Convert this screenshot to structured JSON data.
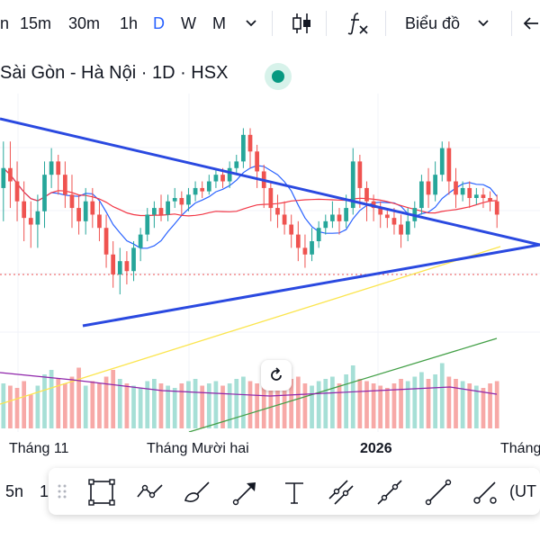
{
  "toolbar": {
    "intervals": [
      {
        "label": "n",
        "active": false
      },
      {
        "label": "15m",
        "active": false
      },
      {
        "label": "30m",
        "active": false
      },
      {
        "label": "1h",
        "active": false
      },
      {
        "label": "D",
        "active": true
      },
      {
        "label": "W",
        "active": false
      },
      {
        "label": "M",
        "active": false
      }
    ],
    "chart_menu_label": "Biểu đồ"
  },
  "symbol_title": "Sài Gòn - Hà Nội · 1D · HSX",
  "time_axis": {
    "labels": [
      "Tháng 11",
      "Tháng Mười hai",
      "2026",
      "Tháng"
    ]
  },
  "bottom_bar": {
    "left_labels": [
      "5n",
      "1"
    ],
    "right_label": "(UT"
  },
  "drawing_tools": [
    "rectangle-tool-icon",
    "path-tool-icon",
    "brush-tool-icon",
    "arrow-tool-icon",
    "text-tool-icon",
    "parallel-channel-icon",
    "ray-tool-icon",
    "trend-line-icon",
    "pencil-line-icon"
  ],
  "colors": {
    "up": "#26a69a",
    "down": "#ef5350",
    "trendline": "#2a49e0",
    "ma_fast": "#2962ff",
    "ma_slow": "#f23645",
    "ma_long": "#fbe54e",
    "vol_ma_green": "#43a047",
    "vol_ma_purple": "#8e24aa",
    "accent": "#2962ff"
  },
  "chart_data": {
    "type": "candlestick",
    "title": "Sài Gòn - Hà Nội · 1D · HSX",
    "x_labels": [
      "Tháng 11",
      "Tháng Mười hai",
      "2026",
      "Tháng"
    ],
    "candles": [
      [
        82,
        88,
        72,
        96,
        1
      ],
      [
        88,
        84,
        76,
        96,
        0
      ],
      [
        84,
        78,
        72,
        90,
        0
      ],
      [
        78,
        73,
        66,
        84,
        0
      ],
      [
        73,
        71,
        64,
        78,
        0
      ],
      [
        71,
        75,
        64,
        80,
        1
      ],
      [
        75,
        86,
        70,
        90,
        1
      ],
      [
        86,
        90,
        82,
        94,
        1
      ],
      [
        90,
        86,
        80,
        92,
        0
      ],
      [
        86,
        80,
        76,
        90,
        0
      ],
      [
        80,
        76,
        70,
        86,
        0
      ],
      [
        76,
        72,
        68,
        80,
        0
      ],
      [
        72,
        78,
        68,
        82,
        1
      ],
      [
        78,
        74,
        70,
        82,
        0
      ],
      [
        74,
        70,
        66,
        78,
        0
      ],
      [
        70,
        62,
        58,
        74,
        0
      ],
      [
        62,
        56,
        52,
        66,
        0
      ],
      [
        56,
        60,
        50,
        64,
        1
      ],
      [
        60,
        57,
        53,
        63,
        0
      ],
      [
        57,
        64,
        54,
        66,
        1
      ],
      [
        64,
        68,
        60,
        70,
        1
      ],
      [
        68,
        74,
        66,
        76,
        1
      ],
      [
        74,
        76,
        70,
        78,
        1
      ],
      [
        76,
        74,
        72,
        80,
        0
      ],
      [
        74,
        78,
        72,
        80,
        1
      ],
      [
        78,
        79,
        76,
        82,
        1
      ],
      [
        79,
        77,
        74,
        81,
        0
      ],
      [
        77,
        80,
        75,
        82,
        1
      ],
      [
        80,
        82,
        78,
        84,
        1
      ],
      [
        82,
        81,
        79,
        84,
        0
      ],
      [
        81,
        84,
        80,
        86,
        1
      ],
      [
        84,
        86,
        82,
        88,
        1
      ],
      [
        86,
        84,
        82,
        88,
        0
      ],
      [
        84,
        88,
        82,
        90,
        1
      ],
      [
        88,
        90,
        86,
        92,
        1
      ],
      [
        90,
        98,
        88,
        100,
        1
      ],
      [
        98,
        93,
        88,
        100,
        0
      ],
      [
        93,
        87,
        82,
        95,
        0
      ],
      [
        87,
        82,
        76,
        89,
        0
      ],
      [
        82,
        76,
        72,
        84,
        0
      ],
      [
        76,
        74,
        70,
        80,
        0
      ],
      [
        74,
        71,
        68,
        78,
        0
      ],
      [
        71,
        68,
        64,
        74,
        0
      ],
      [
        68,
        64,
        60,
        72,
        0
      ],
      [
        64,
        62,
        58,
        68,
        0
      ],
      [
        62,
        66,
        60,
        70,
        1
      ],
      [
        66,
        70,
        64,
        72,
        1
      ],
      [
        70,
        72,
        68,
        74,
        1
      ],
      [
        72,
        74,
        70,
        78,
        1
      ],
      [
        74,
        72,
        68,
        76,
        0
      ],
      [
        72,
        76,
        70,
        80,
        1
      ],
      [
        76,
        90,
        74,
        94,
        1
      ],
      [
        90,
        82,
        76,
        92,
        0
      ],
      [
        82,
        78,
        72,
        84,
        0
      ],
      [
        78,
        76,
        72,
        80,
        0
      ],
      [
        76,
        74,
        70,
        78,
        0
      ],
      [
        74,
        73,
        70,
        76,
        0
      ],
      [
        73,
        71,
        68,
        76,
        0
      ],
      [
        71,
        68,
        64,
        74,
        0
      ],
      [
        68,
        72,
        66,
        76,
        1
      ],
      [
        72,
        76,
        70,
        78,
        1
      ],
      [
        76,
        84,
        74,
        86,
        1
      ],
      [
        84,
        80,
        76,
        88,
        0
      ],
      [
        80,
        86,
        78,
        90,
        1
      ],
      [
        86,
        94,
        84,
        96,
        1
      ],
      [
        94,
        84,
        80,
        96,
        0
      ],
      [
        84,
        80,
        76,
        88,
        0
      ],
      [
        80,
        82,
        78,
        84,
        1
      ],
      [
        82,
        79,
        76,
        84,
        0
      ],
      [
        79,
        80,
        77,
        82,
        1
      ],
      [
        80,
        79,
        76,
        82,
        0
      ],
      [
        79,
        78,
        75,
        81,
        0
      ],
      [
        78,
        74,
        70,
        80,
        0
      ]
    ],
    "volume": [
      40,
      38,
      36,
      42,
      30,
      38,
      48,
      52,
      44,
      40,
      46,
      54,
      38,
      42,
      40,
      46,
      52,
      44,
      40,
      38,
      36,
      42,
      44,
      40,
      38,
      36,
      40,
      42,
      44,
      38,
      40,
      42,
      38,
      40,
      44,
      46,
      42,
      40,
      38,
      36,
      40,
      42,
      44,
      46,
      40,
      38,
      42,
      44,
      46,
      40,
      48,
      56,
      44,
      42,
      40,
      38,
      36,
      40,
      44,
      42,
      46,
      50,
      44,
      48,
      58,
      46,
      44,
      42,
      40,
      38,
      36,
      40,
      42
    ],
    "volume_colors": [
      1,
      0,
      0,
      0,
      0,
      1,
      1,
      1,
      0,
      0,
      0,
      0,
      1,
      0,
      0,
      0,
      0,
      1,
      0,
      1,
      1,
      1,
      1,
      0,
      1,
      1,
      0,
      1,
      1,
      0,
      1,
      1,
      0,
      1,
      1,
      1,
      0,
      0,
      0,
      0,
      0,
      0,
      0,
      0,
      0,
      1,
      1,
      1,
      1,
      0,
      1,
      1,
      0,
      0,
      0,
      0,
      0,
      0,
      0,
      1,
      1,
      1,
      0,
      1,
      1,
      0,
      0,
      1,
      0,
      1,
      0,
      0,
      0
    ]
  }
}
